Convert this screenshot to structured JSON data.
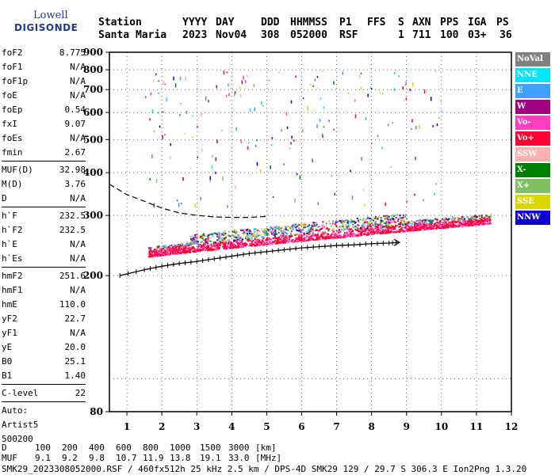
{
  "logo": {
    "line1": "Lowell",
    "line2": "DIGISONDE"
  },
  "header": {
    "row1": [
      "Station",
      "YYYY",
      "DAY",
      "DDD",
      "HHMMSS",
      "P1",
      "FFS",
      "S",
      "AXN",
      "PPS",
      "IGA",
      "PS"
    ],
    "station": "Santa Maria",
    "year": "2023",
    "day": "Nov04",
    "ddd": "308",
    "hhmmss": "052000",
    "p1": "RSF",
    "ffs": "",
    "s": "1",
    "axn": "711",
    "pps": "100",
    "iga": "03+",
    "ps": "36"
  },
  "params": [
    {
      "k": "foF2",
      "v": "8.775"
    },
    {
      "k": "foF1",
      "v": "N/A"
    },
    {
      "k": "foF1p",
      "v": "N/A"
    },
    {
      "k": "foE",
      "v": "N/A"
    },
    {
      "k": "foEp",
      "v": "0.54"
    },
    {
      "k": "fxI",
      "v": "9.07"
    },
    {
      "k": "foEs",
      "v": "N/A"
    },
    {
      "k": "fmin",
      "v": "2.67"
    },
    {
      "sep": true
    },
    {
      "k": "MUF(D)",
      "v": "32.98"
    },
    {
      "k": "M(D)",
      "v": "3.76"
    },
    {
      "k": "D",
      "v": "N/A"
    },
    {
      "sep": true
    },
    {
      "k": "h`F",
      "v": "232.5"
    },
    {
      "k": "h`F2",
      "v": "232.5"
    },
    {
      "k": "h`E",
      "v": "N/A"
    },
    {
      "k": "h`Es",
      "v": "N/A"
    },
    {
      "sep": true
    },
    {
      "k": "hmF2",
      "v": "251.6"
    },
    {
      "k": "hmF1",
      "v": "N/A"
    },
    {
      "k": "hmE",
      "v": "110.0"
    },
    {
      "k": "yF2",
      "v": "22.7"
    },
    {
      "k": "yF1",
      "v": "N/A"
    },
    {
      "k": "yE",
      "v": "20.0"
    },
    {
      "k": "B0",
      "v": "25.1"
    },
    {
      "k": "B1",
      "v": "1.40"
    },
    {
      "sep": true
    },
    {
      "k": "C-level",
      "v": "22"
    },
    {
      "sep": true
    },
    {
      "k": "Auto:",
      "v": ""
    },
    {
      "k": "Artist5",
      "v": ""
    },
    {
      "k": "500200",
      "v": ""
    }
  ],
  "legend": [
    {
      "label": "NoVal",
      "color": "#808080"
    },
    {
      "label": "NNE",
      "color": "#00e5ff"
    },
    {
      "label": "E",
      "color": "#3fa0ff"
    },
    {
      "label": "W",
      "color": "#a0007f"
    },
    {
      "label": "Vo-",
      "color": "#ff3fbf"
    },
    {
      "label": "Vo+",
      "color": "#ff0030"
    },
    {
      "label": "SSW",
      "color": "#ffb0b0"
    },
    {
      "label": "X-",
      "color": "#008000"
    },
    {
      "label": "X+",
      "color": "#80c060"
    },
    {
      "label": "SSE",
      "color": "#d8d800"
    },
    {
      "label": "NNW",
      "color": "#1000d0"
    }
  ],
  "footer": {
    "d_row": [
      "D",
      "100",
      "200",
      "400",
      "600",
      "800",
      "1000",
      "1500",
      "3000",
      "[km]"
    ],
    "muf_row": [
      "MUF",
      "9.1",
      "9.2",
      "9.8",
      "10.7",
      "11.9",
      "13.8",
      "19.1",
      "33.0",
      "[MHz]"
    ],
    "info": "SMK29_2023308052000.RSF / 460fx512h 25 kHz 2.5 km / DPS-4D SMK29 129 / 29.7 S 306.3 E Ion2Png 1.3.20"
  },
  "chart_data": {
    "type": "scatter",
    "xlabel": "",
    "ylabel": "",
    "xlim": [
      0.5,
      12
    ],
    "ylim": [
      80,
      900
    ],
    "x_ticks": [
      "1",
      "2",
      "3",
      "4",
      "5",
      "6",
      "7",
      "8",
      "9",
      "10",
      "11",
      "12"
    ],
    "y_ticks": [
      "80",
      "200",
      "300",
      "400",
      "500",
      "600",
      "700",
      "800",
      "900"
    ],
    "y_tick_values": [
      80,
      200,
      300,
      400,
      500,
      600,
      700,
      800,
      900
    ],
    "y_scale": "log",
    "grid": true,
    "trace_F2_dashed": {
      "x": [
        0.5,
        1.0,
        1.5,
        2.0,
        2.5,
        3.0,
        3.5,
        4.0,
        4.5,
        5.0
      ],
      "y": [
        370,
        345,
        330,
        315,
        305,
        300,
        297,
        296,
        296,
        298
      ]
    },
    "profile_solid": {
      "x": [
        0.8,
        1.5,
        2.0,
        2.5,
        3.0,
        3.5,
        4.0,
        4.5,
        5.0,
        5.5,
        6.0,
        6.5,
        7.0,
        7.5,
        8.0,
        8.5,
        8.8
      ],
      "y": [
        200,
        208,
        213,
        217,
        220,
        224,
        228,
        232,
        235,
        238,
        241,
        243,
        245,
        246,
        248,
        249,
        250
      ]
    },
    "echo_band": {
      "x_start": 1.6,
      "x_end": 11.4,
      "bottom_start": 228,
      "bottom_end": 285,
      "top_start": 240,
      "top_end": 300
    }
  }
}
